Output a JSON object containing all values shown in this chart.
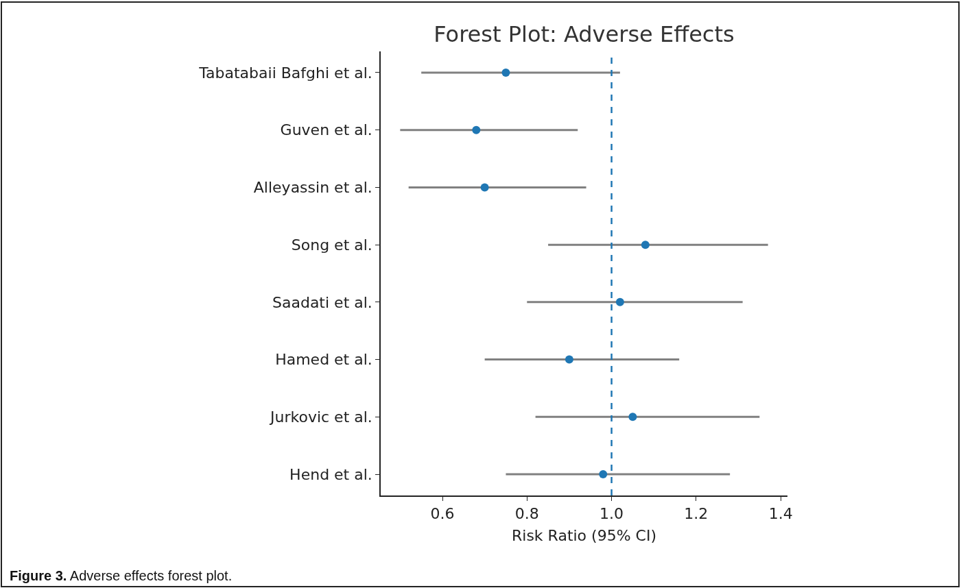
{
  "chart_data": {
    "type": "scatter",
    "orientation": "horizontal",
    "title": "Forest Plot: Adverse Effects",
    "xlabel": "Risk Ratio (95% CI)",
    "categories": [
      "Tabatabaii Bafghi et al.",
      "Guven et al.",
      "Alleyassin et al.",
      "Song et al.",
      "Saadati et al.",
      "Hamed et al.",
      "Jurkovic et al.",
      "Hend et al."
    ],
    "series": [
      {
        "color": "#1f77b4",
        "values": [
          0.75,
          0.68,
          0.7,
          1.08,
          1.02,
          0.9,
          1.05,
          0.98
        ],
        "errors": [
          [
            0.55,
            1.02
          ],
          [
            0.5,
            0.92
          ],
          [
            0.52,
            0.94
          ],
          [
            0.85,
            1.37
          ],
          [
            0.8,
            1.31
          ],
          [
            0.7,
            1.16
          ],
          [
            0.82,
            1.35
          ],
          [
            0.75,
            1.28
          ]
        ]
      }
    ],
    "xlim": [
      0.454,
      1.416
    ],
    "xticks": [
      {
        "value": 0.6,
        "label": "0.6"
      },
      {
        "value": 0.8,
        "label": "0.8"
      },
      {
        "value": 1.0,
        "label": "1.0"
      },
      {
        "value": 1.2,
        "label": "1.2"
      },
      {
        "value": 1.4,
        "label": "1.4"
      }
    ],
    "ref_lines": [
      {
        "axis": "x",
        "value": 1.0,
        "color": "#1f77b4",
        "line_style": "dashed"
      }
    ],
    "marker": "circle",
    "annotations": [
      "Figure 3.",
      "Adverse effects forest plot."
    ]
  }
}
